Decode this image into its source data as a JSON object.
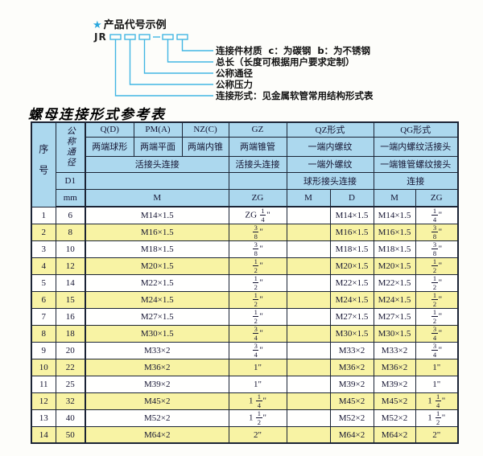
{
  "diagram": {
    "star_icon": "★",
    "title": "产品代号示例",
    "prefix": "JR",
    "labels": [
      "连接件材质  c：为碳钢  b：为不锈钢",
      "总长（长度可根据用户要求定制）",
      "公称通径",
      "公称压力",
      "连接形式：见金属软管常用结构形式表"
    ]
  },
  "table": {
    "title": "螺母连接形式参考表",
    "header": {
      "seq": "序号",
      "dn": "公称通径",
      "d1": "D1",
      "mm": "mm",
      "groups": [
        "Q(D)",
        "PM(A)",
        "NZ(C)",
        "GZ",
        "QZ形式",
        "QG形式"
      ],
      "row2": [
        "两端球形",
        "两端平面",
        "两端内锥",
        "两端锥管",
        "一端内螺纹",
        "一端内螺纹活接头"
      ],
      "row3": [
        "活接头连接",
        "活接头连接",
        "一端外螺纹",
        "一端锥管螺纹接头"
      ],
      "row4": [
        "球形接头连接",
        "连接"
      ],
      "row5": [
        "M",
        "ZG",
        "M",
        "D",
        "M",
        "ZG"
      ]
    },
    "rows": [
      {
        "seq": "1",
        "mm": "6",
        "m": "M14×1.5",
        "zg": "ZG 1/4\"",
        "qz_m": "",
        "qz_d": "M14×1.5",
        "qg_m": "M14×1.5",
        "qg_zg": "1/4\""
      },
      {
        "seq": "2",
        "mm": "8",
        "m": "M16×1.5",
        "zg": "3/8\"",
        "qz_m": "",
        "qz_d": "M16×1.5",
        "qg_m": "M16×1.5",
        "qg_zg": "3/8\""
      },
      {
        "seq": "3",
        "mm": "10",
        "m": "M18×1.5",
        "zg": "3/8\"",
        "qz_m": "",
        "qz_d": "M18×1.5",
        "qg_m": "M18×1.5",
        "qg_zg": "3/8\""
      },
      {
        "seq": "4",
        "mm": "12",
        "m": "M20×1.5",
        "zg": "1/2\"",
        "qz_m": "",
        "qz_d": "M20×1.5",
        "qg_m": "M20×1.5",
        "qg_zg": "1/2\""
      },
      {
        "seq": "5",
        "mm": "14",
        "m": "M22×1.5",
        "zg": "1/2\"",
        "qz_m": "",
        "qz_d": "M22×1.5",
        "qg_m": "M22×1.5",
        "qg_zg": "1/2\""
      },
      {
        "seq": "6",
        "mm": "15",
        "m": "M24×1.5",
        "zg": "1/2\"",
        "qz_m": "",
        "qz_d": "M24×1.5",
        "qg_m": "M24×1.5",
        "qg_zg": "1/2\""
      },
      {
        "seq": "7",
        "mm": "16",
        "m": "M27×1.5",
        "zg": "1/2\"",
        "qz_m": "",
        "qz_d": "M27×1.5",
        "qg_m": "M27×1.5",
        "qg_zg": "1/2\""
      },
      {
        "seq": "8",
        "mm": "18",
        "m": "M30×1.5",
        "zg": "3/4\"",
        "qz_m": "",
        "qz_d": "M30×1.5",
        "qg_m": "M30×1.5",
        "qg_zg": "3/4\""
      },
      {
        "seq": "9",
        "mm": "20",
        "m": "M33×2",
        "zg": "3/4\"",
        "qz_m": "",
        "qz_d": "M33×2",
        "qg_m": "M33×2",
        "qg_zg": "3/4\""
      },
      {
        "seq": "10",
        "mm": "22",
        "m": "M36×2",
        "zg": "1\"",
        "qz_m": "",
        "qz_d": "M36×2",
        "qg_m": "M36×2",
        "qg_zg": "1\""
      },
      {
        "seq": "11",
        "mm": "25",
        "m": "M39×2",
        "zg": "1\"",
        "qz_m": "",
        "qz_d": "M39×2",
        "qg_m": "M39×2",
        "qg_zg": "1\""
      },
      {
        "seq": "12",
        "mm": "32",
        "m": "M45×2",
        "zg": "1 1/4\"",
        "qz_m": "",
        "qz_d": "M45×2",
        "qg_m": "M45×2",
        "qg_zg": "1 1/4\""
      },
      {
        "seq": "13",
        "mm": "40",
        "m": "M52×2",
        "zg": "1 1/2\"",
        "qz_m": "",
        "qz_d": "M52×2",
        "qg_m": "M52×2",
        "qg_zg": "1 1/2\""
      },
      {
        "seq": "14",
        "mm": "50",
        "m": "M64×2",
        "zg": "2\"",
        "qz_m": "",
        "qz_d": "M64×2",
        "qg_m": "M64×2",
        "qg_zg": "2\""
      }
    ]
  },
  "colors": {
    "accent_cyan": "#41b6e3",
    "header_blue": "#acd8ee",
    "row_yellow": "#f8f3a4",
    "border_dark": "#1b2435"
  }
}
